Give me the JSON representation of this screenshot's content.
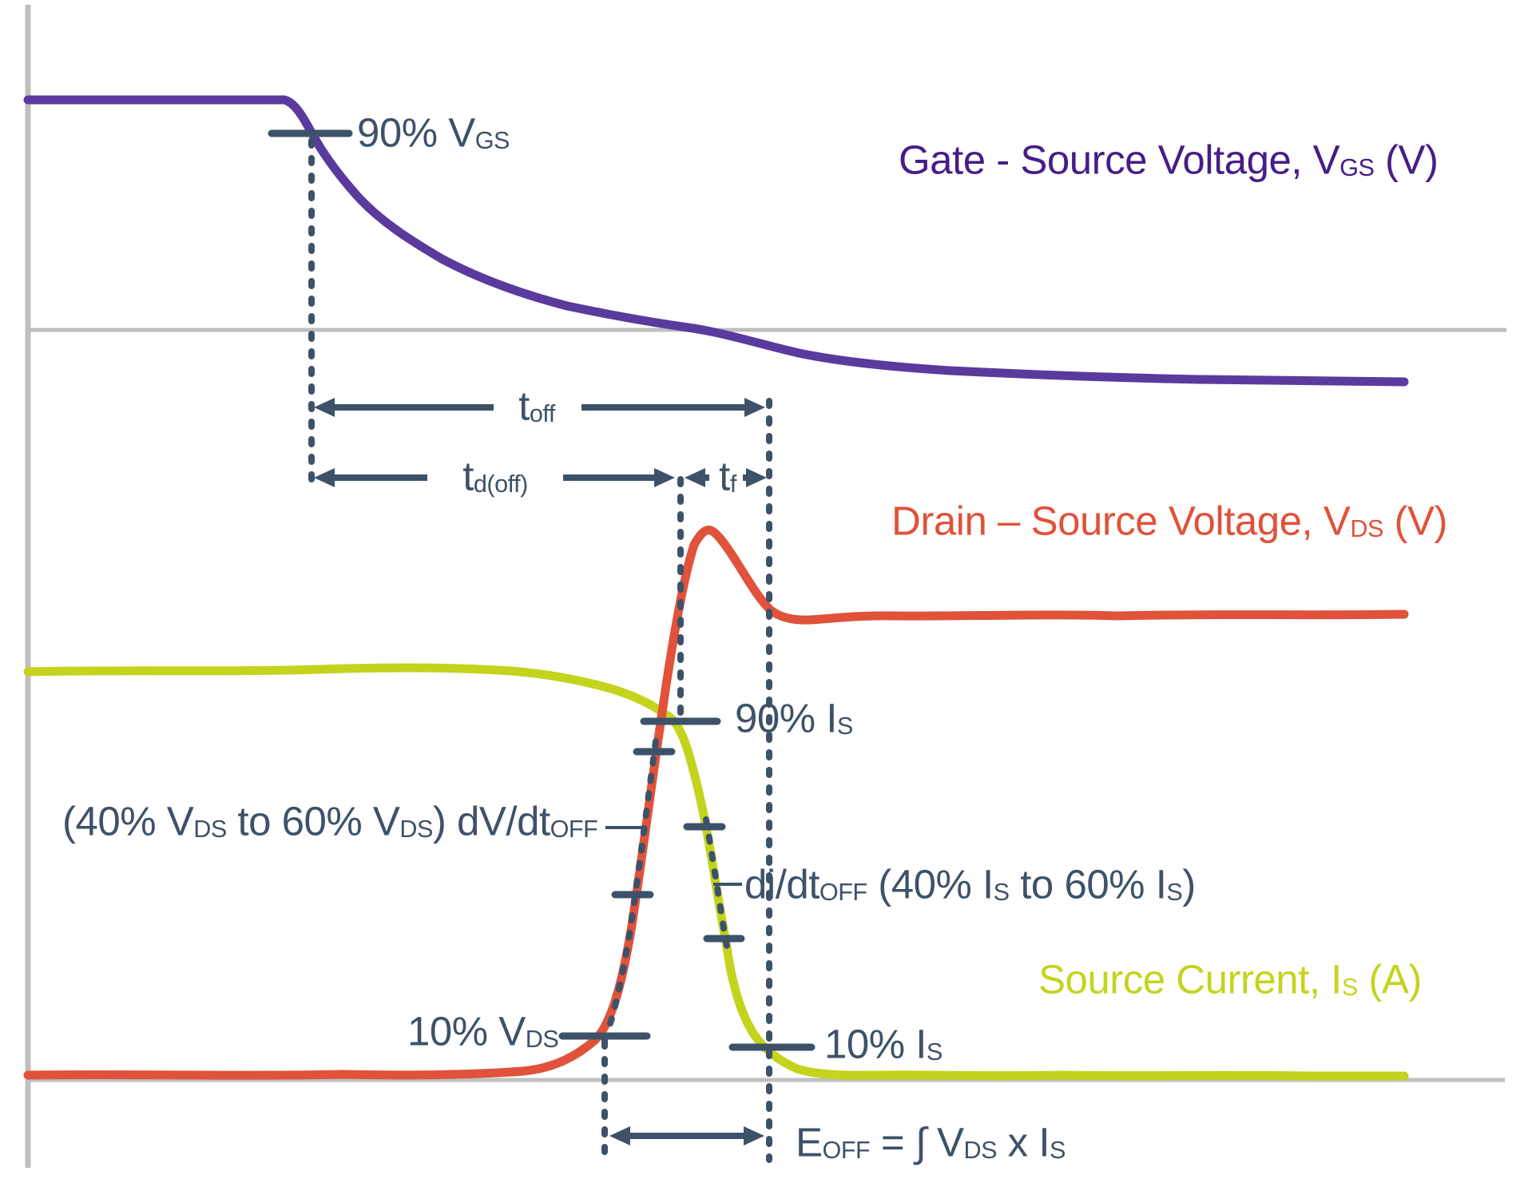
{
  "colors": {
    "vgs_purple": "#5b3a9e",
    "vgs_text": "#471d87",
    "vds_red": "#e0523a",
    "is_green": "#c4d41e",
    "slate": "#3d5269",
    "grid_gray": "#bfbfbf"
  },
  "labels": {
    "pct90_vgs": {
      "parts": [
        {
          "t": "90% V"
        },
        {
          "sub": "GS"
        }
      ]
    },
    "gate_source_voltage": {
      "parts": [
        {
          "t": "Gate - Source Voltage, V"
        },
        {
          "sub": "GS"
        },
        {
          "t": " (V)"
        }
      ]
    },
    "t_off": {
      "parts": [
        {
          "t": "t"
        },
        {
          "sub": "off"
        }
      ]
    },
    "t_d_off": {
      "parts": [
        {
          "t": "t"
        },
        {
          "sub": "d(off)"
        }
      ]
    },
    "t_f": {
      "parts": [
        {
          "t": "t"
        },
        {
          "sub": "f"
        }
      ]
    },
    "drain_source_voltage": {
      "parts": [
        {
          "t": "Drain – Source Voltage, V"
        },
        {
          "sub": "DS"
        },
        {
          "t": " (V)"
        }
      ]
    },
    "pct90_is": {
      "parts": [
        {
          "t": "90% I"
        },
        {
          "sub": "S"
        }
      ]
    },
    "dvdt_off": {
      "parts": [
        {
          "t": "(40% V"
        },
        {
          "sub": "DS"
        },
        {
          "t": " to 60% V"
        },
        {
          "sub": "DS"
        },
        {
          "t": ") dV/dt"
        },
        {
          "sub": "OFF"
        }
      ]
    },
    "didt_off": {
      "parts": [
        {
          "t": "di/dt"
        },
        {
          "sub": "OFF"
        },
        {
          "t": " (40% I"
        },
        {
          "sub": "S"
        },
        {
          "t": " to 60% I"
        },
        {
          "sub": "S"
        },
        {
          "t": ")"
        }
      ]
    },
    "source_current": {
      "parts": [
        {
          "t": "Source Current, I"
        },
        {
          "sub": "S"
        },
        {
          "t": " (A)"
        }
      ]
    },
    "pct10_vds": {
      "parts": [
        {
          "t": "10% V"
        },
        {
          "sub": "DS"
        }
      ]
    },
    "pct10_is": {
      "parts": [
        {
          "t": "10% I"
        },
        {
          "sub": "S"
        }
      ]
    },
    "e_off_formula": {
      "parts": [
        {
          "t": "E"
        },
        {
          "sub": "OFF"
        },
        {
          "t": " = ∫  V"
        },
        {
          "sub": "DS"
        },
        {
          "t": " x I"
        },
        {
          "sub": "S"
        }
      ]
    }
  },
  "chart_data": {
    "type": "line",
    "title": "",
    "series": [
      {
        "name": "Gate - Source Voltage, VGS (V)",
        "color": "#5b3a9e",
        "shape": "flat high, falls at turn-off start (90% VGS), exponential decay crossing zero reference and settling slightly below it"
      },
      {
        "name": "Drain – Source Voltage, VDS (V)",
        "color": "#e0523a",
        "shape": "flat low near zero, steep rise through 10%/40%/60% markers, overshoot peak, rings down and settles at high level"
      },
      {
        "name": "Source Current, IS (A)",
        "color": "#c4d41e",
        "shape": "flat high, falls through 90%/60%/40%/10% markers during tf, settles at zero reference line"
      }
    ],
    "annotations": [
      "90% VGS",
      "toff",
      "td(off)",
      "tf",
      "(40% VDS to 60% VDS) dV/dtOFF",
      "di/dtOFF (40% IS to 60% IS)",
      "90% IS",
      "10% VDS",
      "10% IS",
      "EOFF = ∫ VDS x IS"
    ],
    "axes": {
      "x": "time (unlabeled)",
      "y": "amplitude (unlabeled)",
      "grid": "two gray zero-reference lines + gray y-axis"
    }
  }
}
